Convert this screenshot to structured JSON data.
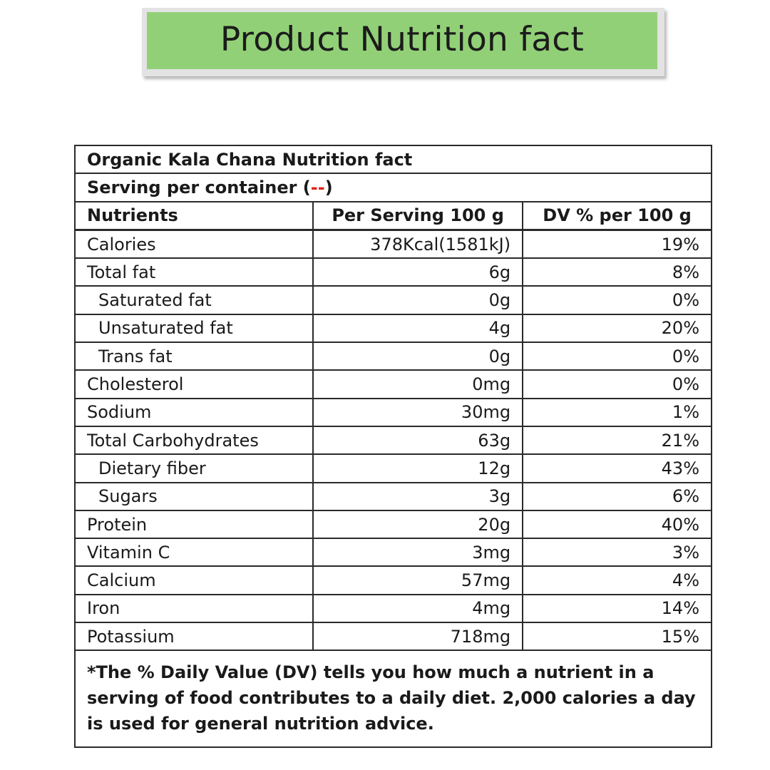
{
  "banner": {
    "title": "Product Nutrition fact"
  },
  "table": {
    "title": "Organic Kala Chana Nutrition fact",
    "serving_label": "Serving per container (",
    "serving_value": "--",
    "serving_suffix": ")",
    "headers": {
      "nutrients": "Nutrients",
      "per_serving": "Per Serving 100 g",
      "dv": "DV % per 100 g"
    },
    "rows": [
      {
        "name": "Calories",
        "serving": "378Kcal(1581kJ)",
        "dv": "19%",
        "indent": false
      },
      {
        "name": "Total fat",
        "serving": "6g",
        "dv": "8%",
        "indent": false
      },
      {
        "name": "Saturated fat",
        "serving": "0g",
        "dv": "0%",
        "indent": true
      },
      {
        "name": "Unsaturated fat",
        "serving": "4g",
        "dv": "20%",
        "indent": true
      },
      {
        "name": "Trans fat",
        "serving": "0g",
        "dv": "0%",
        "indent": true
      },
      {
        "name": "Cholesterol",
        "serving": "0mg",
        "dv": "0%",
        "indent": false
      },
      {
        "name": "Sodium",
        "serving": "30mg",
        "dv": "1%",
        "indent": false
      },
      {
        "name": "Total Carbohydrates",
        "serving": "63g",
        "dv": "21%",
        "indent": false
      },
      {
        "name": "Dietary fiber",
        "serving": "12g",
        "dv": "43%",
        "indent": true
      },
      {
        "name": "Sugars",
        "serving": "3g",
        "dv": "6%",
        "indent": true
      },
      {
        "name": "Protein",
        "serving": "20g",
        "dv": "40%",
        "indent": false
      },
      {
        "name": "Vitamin C",
        "serving": "3mg",
        "dv": "3%",
        "indent": false
      },
      {
        "name": "Calcium",
        "serving": "57mg",
        "dv": "4%",
        "indent": false
      },
      {
        "name": "Iron",
        "serving": "4mg",
        "dv": "14%",
        "indent": false
      },
      {
        "name": "Potassium",
        "serving": "718mg",
        "dv": "15%",
        "indent": false
      }
    ],
    "footnote": "*The % Daily Value (DV) tells you how much a nutrient in a serving of food contributes to a daily diet. 2,000 calories a day is used for general nutrition advice."
  },
  "colors": {
    "banner_fill": "#92d077",
    "banner_frame": "#e3e3e3",
    "serving_highlight": "#e2231a"
  }
}
